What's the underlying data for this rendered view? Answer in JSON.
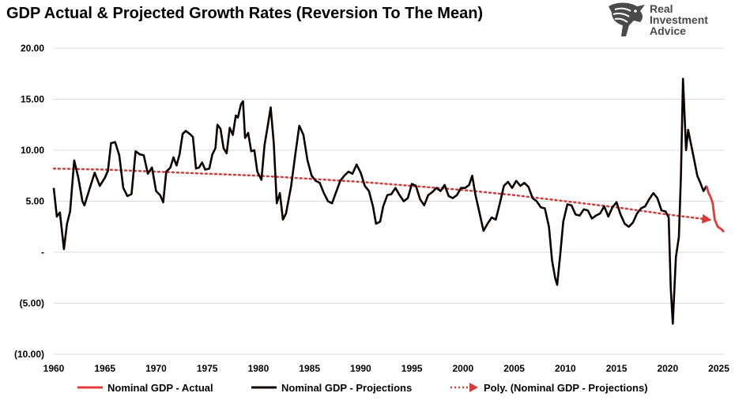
{
  "title": "GDP Actual & Projected Growth Rates (Reversion To The Mean)",
  "logo": {
    "line1": "Real",
    "line2": "Investment",
    "line3": "Advice",
    "color": "#4a4a4a"
  },
  "colors": {
    "actual": "#e03c3c",
    "projection": "#0d0000",
    "trend": "#d43c3c",
    "grid": "#d9d9d9"
  },
  "legend": [
    {
      "label": "Nominal GDP - Actual",
      "style": "solid-red"
    },
    {
      "label": "Nominal GDP - Projections",
      "style": "solid-black"
    },
    {
      "label": "Poly. (Nominal GDP - Projections)",
      "style": "dotted-red-arrow"
    }
  ],
  "chart_data": {
    "type": "line",
    "title": "GDP Actual & Projected Growth Rates (Reversion To The Mean)",
    "xlabel": "",
    "ylabel": "",
    "xlim": [
      1960,
      2025.5
    ],
    "ylim": [
      -10,
      20
    ],
    "x_ticks": [
      "1960",
      "1965",
      "1970",
      "1975",
      "1980",
      "1985",
      "1990",
      "1995",
      "2000",
      "2005",
      "2010",
      "2015",
      "2020",
      "2025"
    ],
    "y_ticks": [
      {
        "value": 20,
        "label": "20.00"
      },
      {
        "value": 15,
        "label": "15.00"
      },
      {
        "value": 10,
        "label": "10.00"
      },
      {
        "value": 5,
        "label": "5.00"
      },
      {
        "value": 0,
        "label": "-"
      },
      {
        "value": -5,
        "label": "(5.00)"
      },
      {
        "value": -10,
        "label": "(10.00)"
      }
    ],
    "grid": "horizontal",
    "legend_position": "bottom",
    "series": [
      {
        "name": "Nominal GDP - Projections",
        "points": [
          [
            1960.0,
            6.3
          ],
          [
            1960.3,
            3.5
          ],
          [
            1960.6,
            3.9
          ],
          [
            1961.0,
            0.3
          ],
          [
            1961.3,
            2.8
          ],
          [
            1961.6,
            4.0
          ],
          [
            1962.0,
            9.0
          ],
          [
            1962.4,
            7.3
          ],
          [
            1962.8,
            5.0
          ],
          [
            1963.0,
            4.6
          ],
          [
            1963.5,
            6.2
          ],
          [
            1964.0,
            7.8
          ],
          [
            1964.5,
            6.5
          ],
          [
            1965.0,
            7.3
          ],
          [
            1965.3,
            8.0
          ],
          [
            1965.6,
            10.7
          ],
          [
            1966.0,
            10.8
          ],
          [
            1966.4,
            9.5
          ],
          [
            1966.8,
            6.3
          ],
          [
            1967.2,
            5.5
          ],
          [
            1967.6,
            5.7
          ],
          [
            1968.0,
            9.9
          ],
          [
            1968.4,
            9.6
          ],
          [
            1968.8,
            9.5
          ],
          [
            1969.2,
            7.7
          ],
          [
            1969.6,
            8.3
          ],
          [
            1970.0,
            6.0
          ],
          [
            1970.4,
            5.6
          ],
          [
            1970.7,
            4.9
          ],
          [
            1971.0,
            7.9
          ],
          [
            1971.4,
            8.3
          ],
          [
            1971.7,
            9.3
          ],
          [
            1972.0,
            8.5
          ],
          [
            1972.3,
            9.6
          ],
          [
            1972.6,
            11.6
          ],
          [
            1972.9,
            11.9
          ],
          [
            1973.3,
            11.6
          ],
          [
            1973.6,
            11.3
          ],
          [
            1973.9,
            8.2
          ],
          [
            1974.2,
            8.3
          ],
          [
            1974.5,
            8.8
          ],
          [
            1974.8,
            8.1
          ],
          [
            1975.2,
            8.2
          ],
          [
            1975.5,
            9.6
          ],
          [
            1975.8,
            10.2
          ],
          [
            1976.0,
            12.5
          ],
          [
            1976.3,
            12.1
          ],
          [
            1976.6,
            10.2
          ],
          [
            1976.9,
            9.7
          ],
          [
            1977.2,
            12.2
          ],
          [
            1977.5,
            11.5
          ],
          [
            1977.8,
            13.4
          ],
          [
            1978.0,
            13.2
          ],
          [
            1978.3,
            14.5
          ],
          [
            1978.5,
            14.8
          ],
          [
            1978.7,
            11.2
          ],
          [
            1979.0,
            11.7
          ],
          [
            1979.3,
            9.9
          ],
          [
            1979.6,
            10.0
          ],
          [
            1979.9,
            7.9
          ],
          [
            1980.3,
            7.1
          ],
          [
            1980.6,
            10.5
          ],
          [
            1980.9,
            12.3
          ],
          [
            1981.2,
            14.2
          ],
          [
            1981.5,
            10.7
          ],
          [
            1981.8,
            4.8
          ],
          [
            1982.1,
            5.8
          ],
          [
            1982.4,
            3.2
          ],
          [
            1982.7,
            3.8
          ],
          [
            1983.2,
            6.5
          ],
          [
            1983.6,
            9.5
          ],
          [
            1984.0,
            12.4
          ],
          [
            1984.4,
            11.5
          ],
          [
            1984.8,
            9.0
          ],
          [
            1985.2,
            7.5
          ],
          [
            1985.6,
            7.0
          ],
          [
            1986.0,
            6.8
          ],
          [
            1986.4,
            5.8
          ],
          [
            1986.8,
            5.0
          ],
          [
            1987.2,
            4.8
          ],
          [
            1987.6,
            5.9
          ],
          [
            1988.0,
            7.0
          ],
          [
            1988.4,
            7.5
          ],
          [
            1988.8,
            7.9
          ],
          [
            1989.2,
            7.7
          ],
          [
            1989.6,
            8.6
          ],
          [
            1990.0,
            7.8
          ],
          [
            1990.4,
            6.5
          ],
          [
            1990.8,
            6.0
          ],
          [
            1991.2,
            4.5
          ],
          [
            1991.5,
            2.8
          ],
          [
            1991.9,
            3.0
          ],
          [
            1992.2,
            4.5
          ],
          [
            1992.6,
            5.6
          ],
          [
            1993.0,
            5.7
          ],
          [
            1993.4,
            6.3
          ],
          [
            1993.8,
            5.6
          ],
          [
            1994.2,
            5.0
          ],
          [
            1994.6,
            5.3
          ],
          [
            1995.0,
            6.7
          ],
          [
            1995.4,
            6.5
          ],
          [
            1995.8,
            5.2
          ],
          [
            1996.2,
            4.6
          ],
          [
            1996.6,
            5.6
          ],
          [
            1997.0,
            5.9
          ],
          [
            1997.4,
            6.3
          ],
          [
            1997.8,
            6.0
          ],
          [
            1998.2,
            6.6
          ],
          [
            1998.6,
            5.5
          ],
          [
            1999.0,
            5.3
          ],
          [
            1999.4,
            5.6
          ],
          [
            1999.8,
            6.3
          ],
          [
            2000.2,
            6.3
          ],
          [
            2000.6,
            6.6
          ],
          [
            2000.9,
            7.5
          ],
          [
            2001.2,
            5.7
          ],
          [
            2001.6,
            3.9
          ],
          [
            2002.0,
            2.1
          ],
          [
            2002.4,
            2.8
          ],
          [
            2002.8,
            3.4
          ],
          [
            2003.2,
            3.2
          ],
          [
            2003.6,
            4.8
          ],
          [
            2004.0,
            6.5
          ],
          [
            2004.4,
            6.9
          ],
          [
            2004.8,
            6.3
          ],
          [
            2005.2,
            7.0
          ],
          [
            2005.6,
            6.5
          ],
          [
            2006.0,
            6.8
          ],
          [
            2006.4,
            6.4
          ],
          [
            2006.8,
            5.3
          ],
          [
            2007.2,
            5.0
          ],
          [
            2007.6,
            4.4
          ],
          [
            2008.0,
            4.3
          ],
          [
            2008.4,
            2.5
          ],
          [
            2008.7,
            -0.8
          ],
          [
            2009.0,
            -2.5
          ],
          [
            2009.2,
            -3.2
          ],
          [
            2009.5,
            -0.2
          ],
          [
            2009.8,
            3.0
          ],
          [
            2010.2,
            4.7
          ],
          [
            2010.6,
            4.6
          ],
          [
            2011.0,
            3.7
          ],
          [
            2011.4,
            3.6
          ],
          [
            2011.8,
            4.2
          ],
          [
            2012.2,
            4.1
          ],
          [
            2012.6,
            3.3
          ],
          [
            2013.0,
            3.6
          ],
          [
            2013.4,
            3.8
          ],
          [
            2013.8,
            4.5
          ],
          [
            2014.2,
            3.5
          ],
          [
            2014.6,
            4.4
          ],
          [
            2015.0,
            4.9
          ],
          [
            2015.4,
            3.7
          ],
          [
            2015.8,
            2.8
          ],
          [
            2016.2,
            2.5
          ],
          [
            2016.6,
            2.9
          ],
          [
            2017.0,
            3.8
          ],
          [
            2017.4,
            4.3
          ],
          [
            2017.8,
            4.5
          ],
          [
            2018.2,
            5.2
          ],
          [
            2018.6,
            5.8
          ],
          [
            2019.0,
            5.3
          ],
          [
            2019.4,
            4.1
          ],
          [
            2019.8,
            4.0
          ],
          [
            2020.1,
            3.4
          ],
          [
            2020.3,
            -3.5
          ],
          [
            2020.5,
            -7.0
          ],
          [
            2020.8,
            -0.5
          ],
          [
            2021.1,
            1.5
          ],
          [
            2021.3,
            7.5
          ],
          [
            2021.5,
            17.0
          ],
          [
            2021.8,
            10.0
          ],
          [
            2022.0,
            12.0
          ],
          [
            2022.3,
            10.5
          ],
          [
            2022.6,
            9.0
          ],
          [
            2022.9,
            7.5
          ],
          [
            2023.2,
            6.8
          ],
          [
            2023.5,
            6.0
          ],
          [
            2023.8,
            6.5
          ]
        ]
      },
      {
        "name": "Nominal GDP - Actual",
        "points": [
          [
            2023.8,
            6.5
          ],
          [
            2024.0,
            5.8
          ],
          [
            2024.2,
            5.4
          ],
          [
            2024.4,
            4.8
          ],
          [
            2024.6,
            3.2
          ],
          [
            2024.9,
            2.5
          ],
          [
            2025.2,
            2.3
          ],
          [
            2025.5,
            2.0
          ]
        ]
      },
      {
        "name": "Poly. (Nominal GDP - Projections)",
        "points": [
          [
            1960,
            8.2
          ],
          [
            1965,
            8.1
          ],
          [
            1970,
            7.9
          ],
          [
            1975,
            7.7
          ],
          [
            1980,
            7.5
          ],
          [
            1985,
            7.2
          ],
          [
            1990,
            6.9
          ],
          [
            1995,
            6.5
          ],
          [
            2000,
            6.1
          ],
          [
            2005,
            5.6
          ],
          [
            2010,
            5.0
          ],
          [
            2015,
            4.4
          ],
          [
            2020,
            3.7
          ],
          [
            2024,
            3.2
          ]
        ]
      }
    ]
  }
}
